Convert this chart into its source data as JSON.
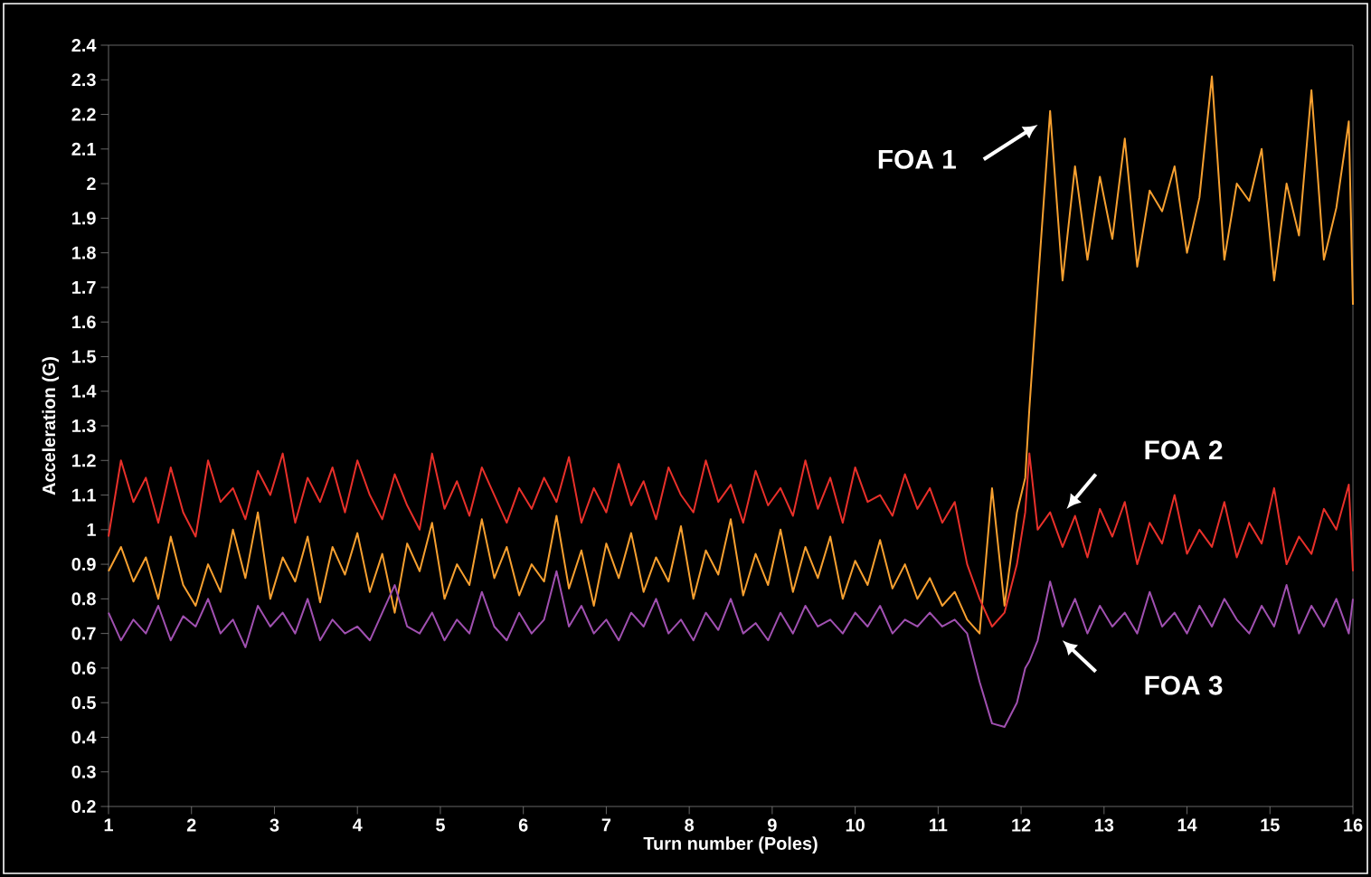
{
  "chart_data": {
    "type": "line",
    "xlabel": "Turn number (Poles)",
    "ylabel": "Acceleration (G)",
    "xlim": [
      1,
      16
    ],
    "ylim": [
      0.2,
      2.4
    ],
    "xticks": [
      1,
      2,
      3,
      4,
      5,
      6,
      7,
      8,
      9,
      10,
      11,
      12,
      13,
      14,
      15,
      16
    ],
    "yticks": [
      0.2,
      0.3,
      0.4,
      0.5,
      0.6,
      0.7,
      0.8,
      0.9,
      1,
      1.1,
      1.2,
      1.3,
      1.4,
      1.5,
      1.6,
      1.7,
      1.8,
      1.9,
      2,
      2.1,
      2.2,
      2.3,
      2.4
    ],
    "grid": false,
    "marker": "none",
    "line_style": "solid",
    "x": [
      1.0,
      1.15,
      1.3,
      1.45,
      1.6,
      1.75,
      1.9,
      2.05,
      2.2,
      2.35,
      2.5,
      2.65,
      2.8,
      2.95,
      3.1,
      3.25,
      3.4,
      3.55,
      3.7,
      3.85,
      4.0,
      4.15,
      4.3,
      4.45,
      4.6,
      4.75,
      4.9,
      5.05,
      5.2,
      5.35,
      5.5,
      5.65,
      5.8,
      5.95,
      6.1,
      6.25,
      6.4,
      6.55,
      6.7,
      6.85,
      7.0,
      7.15,
      7.3,
      7.45,
      7.6,
      7.75,
      7.9,
      8.05,
      8.2,
      8.35,
      8.5,
      8.65,
      8.8,
      8.95,
      9.1,
      9.25,
      9.4,
      9.55,
      9.7,
      9.85,
      10.0,
      10.15,
      10.3,
      10.45,
      10.6,
      10.75,
      10.9,
      11.05,
      11.2,
      11.35,
      11.5,
      11.65,
      11.8,
      11.95,
      12.05,
      12.1,
      12.2,
      12.35,
      12.5,
      12.65,
      12.8,
      12.95,
      13.1,
      13.25,
      13.4,
      13.55,
      13.7,
      13.85,
      14.0,
      14.15,
      14.3,
      14.45,
      14.6,
      14.75,
      14.9,
      15.05,
      15.2,
      15.35,
      15.5,
      15.65,
      15.8,
      15.95,
      16.0
    ],
    "series": [
      {
        "color": "#f7a030",
        "values": [
          0.88,
          0.95,
          0.85,
          0.92,
          0.8,
          0.98,
          0.84,
          0.78,
          0.9,
          0.82,
          1.0,
          0.86,
          1.05,
          0.8,
          0.92,
          0.85,
          0.98,
          0.79,
          0.95,
          0.87,
          0.99,
          0.82,
          0.93,
          0.76,
          0.96,
          0.88,
          1.02,
          0.8,
          0.9,
          0.84,
          1.03,
          0.86,
          0.95,
          0.81,
          0.9,
          0.85,
          1.04,
          0.83,
          0.94,
          0.78,
          0.96,
          0.86,
          0.99,
          0.82,
          0.92,
          0.85,
          1.01,
          0.8,
          0.94,
          0.87,
          1.03,
          0.81,
          0.93,
          0.84,
          1.0,
          0.82,
          0.95,
          0.86,
          0.98,
          0.8,
          0.91,
          0.84,
          0.97,
          0.83,
          0.9,
          0.8,
          0.86,
          0.78,
          0.82,
          0.74,
          0.7,
          1.12,
          0.78,
          1.05,
          1.15,
          1.35,
          1.7,
          2.21,
          1.72,
          2.05,
          1.78,
          2.02,
          1.84,
          2.13,
          1.76,
          1.98,
          1.92,
          2.05,
          1.8,
          1.96,
          2.31,
          1.78,
          2.0,
          1.95,
          2.1,
          1.72,
          2.0,
          1.85,
          2.27,
          1.78,
          1.93,
          2.18,
          1.65
        ]
      },
      {
        "color": "#e8302a",
        "values": [
          0.98,
          1.2,
          1.08,
          1.15,
          1.02,
          1.18,
          1.05,
          0.98,
          1.2,
          1.08,
          1.12,
          1.03,
          1.17,
          1.1,
          1.22,
          1.02,
          1.15,
          1.08,
          1.18,
          1.05,
          1.2,
          1.1,
          1.03,
          1.16,
          1.07,
          1.0,
          1.22,
          1.06,
          1.14,
          1.04,
          1.18,
          1.1,
          1.02,
          1.12,
          1.06,
          1.15,
          1.08,
          1.21,
          1.02,
          1.12,
          1.05,
          1.19,
          1.07,
          1.14,
          1.03,
          1.18,
          1.1,
          1.05,
          1.2,
          1.08,
          1.13,
          1.02,
          1.17,
          1.07,
          1.12,
          1.04,
          1.2,
          1.06,
          1.15,
          1.02,
          1.18,
          1.08,
          1.1,
          1.04,
          1.16,
          1.06,
          1.12,
          1.02,
          1.08,
          0.9,
          0.8,
          0.72,
          0.76,
          0.9,
          1.05,
          1.22,
          1.0,
          1.05,
          0.95,
          1.04,
          0.92,
          1.06,
          0.98,
          1.08,
          0.9,
          1.02,
          0.96,
          1.1,
          0.93,
          1.0,
          0.95,
          1.08,
          0.92,
          1.02,
          0.96,
          1.12,
          0.9,
          0.98,
          0.93,
          1.06,
          1.0,
          1.13,
          0.88
        ]
      },
      {
        "color": "#a050b0",
        "values": [
          0.76,
          0.68,
          0.74,
          0.7,
          0.78,
          0.68,
          0.75,
          0.72,
          0.8,
          0.7,
          0.74,
          0.66,
          0.78,
          0.72,
          0.76,
          0.7,
          0.8,
          0.68,
          0.74,
          0.7,
          0.72,
          0.68,
          0.76,
          0.84,
          0.72,
          0.7,
          0.76,
          0.68,
          0.74,
          0.7,
          0.82,
          0.72,
          0.68,
          0.76,
          0.7,
          0.74,
          0.88,
          0.72,
          0.78,
          0.7,
          0.74,
          0.68,
          0.76,
          0.72,
          0.8,
          0.7,
          0.74,
          0.68,
          0.76,
          0.71,
          0.8,
          0.7,
          0.73,
          0.68,
          0.76,
          0.7,
          0.78,
          0.72,
          0.74,
          0.7,
          0.76,
          0.72,
          0.78,
          0.7,
          0.74,
          0.72,
          0.76,
          0.72,
          0.74,
          0.7,
          0.56,
          0.44,
          0.43,
          0.5,
          0.6,
          0.62,
          0.68,
          0.85,
          0.72,
          0.8,
          0.7,
          0.78,
          0.72,
          0.76,
          0.7,
          0.82,
          0.72,
          0.76,
          0.7,
          0.78,
          0.72,
          0.8,
          0.74,
          0.7,
          0.78,
          0.72,
          0.84,
          0.7,
          0.78,
          0.72,
          0.8,
          0.7,
          0.8
        ]
      }
    ],
    "annotations": [
      "FOA 1",
      "FOA 2",
      "FOA 3"
    ]
  }
}
